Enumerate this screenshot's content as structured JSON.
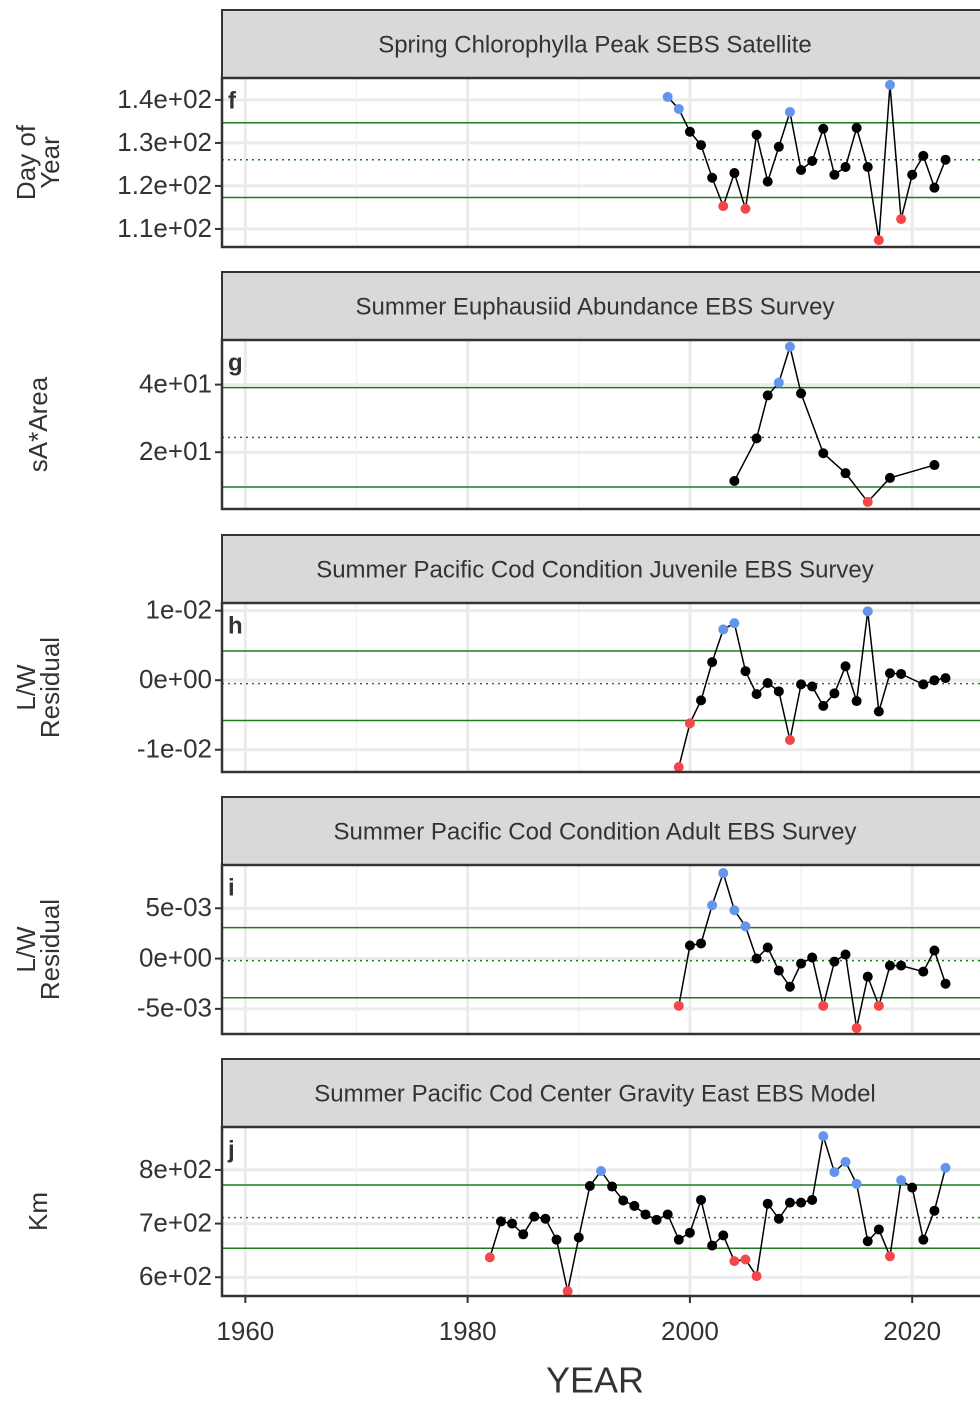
{
  "chart_data": [
    {
      "type": "line",
      "label": "f",
      "title": "Spring Chlorophylla Peak SEBS Satellite",
      "ylabel": [
        "Day of",
        "Year"
      ],
      "x": [
        1998,
        1999,
        2000,
        2001,
        2002,
        2003,
        2004,
        2005,
        2006,
        2007,
        2008,
        2009,
        2010,
        2011,
        2012,
        2013,
        2014,
        2015,
        2016,
        2017,
        2018,
        2019,
        2020,
        2021,
        2022,
        2023
      ],
      "values": [
        140.7,
        137.9,
        132.6,
        129.5,
        121.9,
        115.3,
        123,
        114.7,
        131.9,
        121,
        129.1,
        137.2,
        123.7,
        125.8,
        133.3,
        122.6,
        124.4,
        133.5,
        124.4,
        107.4,
        143.5,
        112.3,
        122.6,
        127,
        119.6,
        126.1
      ],
      "upper": 134.7,
      "mean": 126.1,
      "lower": 117.3,
      "xlim": [
        1957.9,
        2026.1
      ],
      "xticks": [
        1960,
        1980,
        2000,
        2020
      ],
      "xminor": [
        1970,
        1990,
        2010
      ],
      "ylim": [
        105.8,
        145.1
      ],
      "yticks": [
        {
          "value": 110,
          "label": "1.1e+02"
        },
        {
          "value": 120,
          "label": "1.2e+02"
        },
        {
          "value": 130,
          "label": "1.3e+02"
        },
        {
          "value": 140,
          "label": "1.4e+02"
        }
      ],
      "color": "#000000",
      "above_color": "#6495ED",
      "below_color": "#F5474A",
      "threshold_color": "#1E7A1E",
      "grid": true
    },
    {
      "type": "line",
      "label": "g",
      "title": "Summer Euphausiid Abundance EBS Survey",
      "ylabel": [
        "sA*Area"
      ],
      "x": [
        2004,
        2006,
        2007,
        2008,
        2009,
        2010,
        2012,
        2014,
        2016,
        2018,
        2022
      ],
      "values": [
        11.5,
        24.1,
        36.8,
        40.6,
        51.2,
        37.4,
        19.7,
        13.8,
        5.3,
        12.4,
        16.2
      ],
      "upper": 39.1,
      "mean": 24.4,
      "lower": 9.7,
      "xlim": [
        1957.9,
        2026.1
      ],
      "xticks": [
        1960,
        1980,
        2000,
        2020
      ],
      "xminor": [
        1970,
        1990,
        2010
      ],
      "ylim": [
        3.2,
        53.2
      ],
      "yticks": [
        {
          "value": 20,
          "label": "2e+01"
        },
        {
          "value": 40,
          "label": "4e+01"
        }
      ],
      "color": "#000000",
      "above_color": "#6495ED",
      "below_color": "#F5474A",
      "threshold_color": "#1E7A1E",
      "grid": true
    },
    {
      "type": "line",
      "label": "h",
      "title": "Summer Pacific Cod Condition Juvenile EBS Survey",
      "ylabel": [
        "L/W",
        "Residual"
      ],
      "x": [
        1999,
        2000,
        2001,
        2002,
        2003,
        2004,
        2005,
        2006,
        2007,
        2008,
        2009,
        2010,
        2011,
        2012,
        2013,
        2014,
        2015,
        2016,
        2017,
        2018,
        2019,
        2021,
        2022,
        2023
      ],
      "values": [
        -0.0125,
        -0.0062,
        -0.0029,
        0.0026,
        0.0073,
        0.0082,
        0.0013,
        -0.002,
        -0.0004,
        -0.0016,
        -0.0086,
        -0.0006,
        -0.0009,
        -0.0037,
        -0.0019,
        0.002,
        -0.003,
        0.0099,
        -0.0045,
        0.001,
        0.0009,
        -0.0006,
        0.0,
        0.0003
      ],
      "upper": 0.0042,
      "mean": -0.0005,
      "lower": -0.0058,
      "xlim": [
        1957.9,
        2026.1
      ],
      "xticks": [
        1960,
        1980,
        2000,
        2020
      ],
      "xminor": [
        1970,
        1990,
        2010
      ],
      "ylim": [
        -0.0132,
        0.0111
      ],
      "yticks": [
        {
          "value": -0.01,
          "label": "-1e-02"
        },
        {
          "value": 0,
          "label": "0e+00"
        },
        {
          "value": 0.01,
          "label": "1e-02"
        }
      ],
      "color": "#000000",
      "above_color": "#6495ED",
      "below_color": "#F5474A",
      "threshold_color": "#1E7A1E",
      "grid": true
    },
    {
      "type": "line",
      "label": "i",
      "title": "Summer Pacific Cod Condition Adult EBS Survey",
      "ylabel": [
        "L/W",
        "Residual"
      ],
      "x": [
        1999,
        2000,
        2001,
        2002,
        2003,
        2004,
        2005,
        2006,
        2007,
        2008,
        2009,
        2010,
        2011,
        2012,
        2013,
        2014,
        2015,
        2016,
        2017,
        2018,
        2019,
        2021,
        2022,
        2023
      ],
      "values": [
        -0.0047,
        0.0013,
        0.0015,
        0.0053,
        0.0085,
        0.0048,
        0.0032,
        0,
        0.0011,
        -0.0012,
        -0.0028,
        -0.0005,
        0.0001,
        -0.0047,
        -0.0003,
        0.0004,
        -0.0069,
        -0.0018,
        -0.0047,
        -0.0007,
        -0.0007,
        -0.0013,
        0.0008,
        -0.0025
      ],
      "upper": 0.00307,
      "mean": -0.0002,
      "lower": -0.0039,
      "xlim": [
        1957.9,
        2026.1
      ],
      "xticks": [
        1960,
        1980,
        2000,
        2020
      ],
      "xminor": [
        1970,
        1990,
        2010
      ],
      "ylim": [
        -0.0075,
        0.0093
      ],
      "yticks": [
        {
          "value": -0.005,
          "label": "-5e-03"
        },
        {
          "value": 0,
          "label": "0e+00"
        },
        {
          "value": 0.005,
          "label": "5e-03"
        }
      ],
      "color": "#000000",
      "above_color": "#6495ED",
      "below_color": "#F5474A",
      "threshold_color": "#1E7A1E",
      "grid": true
    },
    {
      "type": "line",
      "label": "j",
      "title": "Summer Pacific Cod Center Gravity East EBS Model",
      "ylabel": [
        "Km"
      ],
      "xlabel": "YEAR",
      "x": [
        1982,
        1983,
        1984,
        1985,
        1986,
        1987,
        1988,
        1989,
        1990,
        1991,
        1992,
        1993,
        1994,
        1995,
        1996,
        1997,
        1998,
        1999,
        2000,
        2001,
        2002,
        2003,
        2004,
        2005,
        2006,
        2007,
        2008,
        2009,
        2010,
        2011,
        2012,
        2013,
        2014,
        2015,
        2016,
        2017,
        2018,
        2019,
        2020,
        2021,
        2022,
        2023
      ],
      "values": [
        637,
        704,
        700,
        680,
        713,
        709,
        670,
        574,
        674,
        770,
        798,
        769,
        743,
        733,
        717,
        707,
        717,
        670,
        683,
        744,
        659,
        678,
        630,
        633,
        602,
        737,
        709,
        739,
        739,
        744,
        863,
        796,
        815,
        774,
        667,
        689,
        639,
        781,
        767,
        670,
        724,
        804
      ],
      "upper": 772,
      "mean": 711,
      "lower": 654,
      "xlim": [
        1957.9,
        2026.1
      ],
      "xticks": [
        1960,
        1980,
        2000,
        2020
      ],
      "xminor": [
        1970,
        1990,
        2010
      ],
      "ylim": [
        565,
        880
      ],
      "yticks": [
        {
          "value": 600,
          "label": "6e+02"
        },
        {
          "value": 700,
          "label": "7e+02"
        },
        {
          "value": 800,
          "label": "8e+02"
        }
      ],
      "color": "#000000",
      "above_color": "#6495ED",
      "below_color": "#F5474A",
      "threshold_color": "#1E7A1E",
      "grid": true
    }
  ]
}
